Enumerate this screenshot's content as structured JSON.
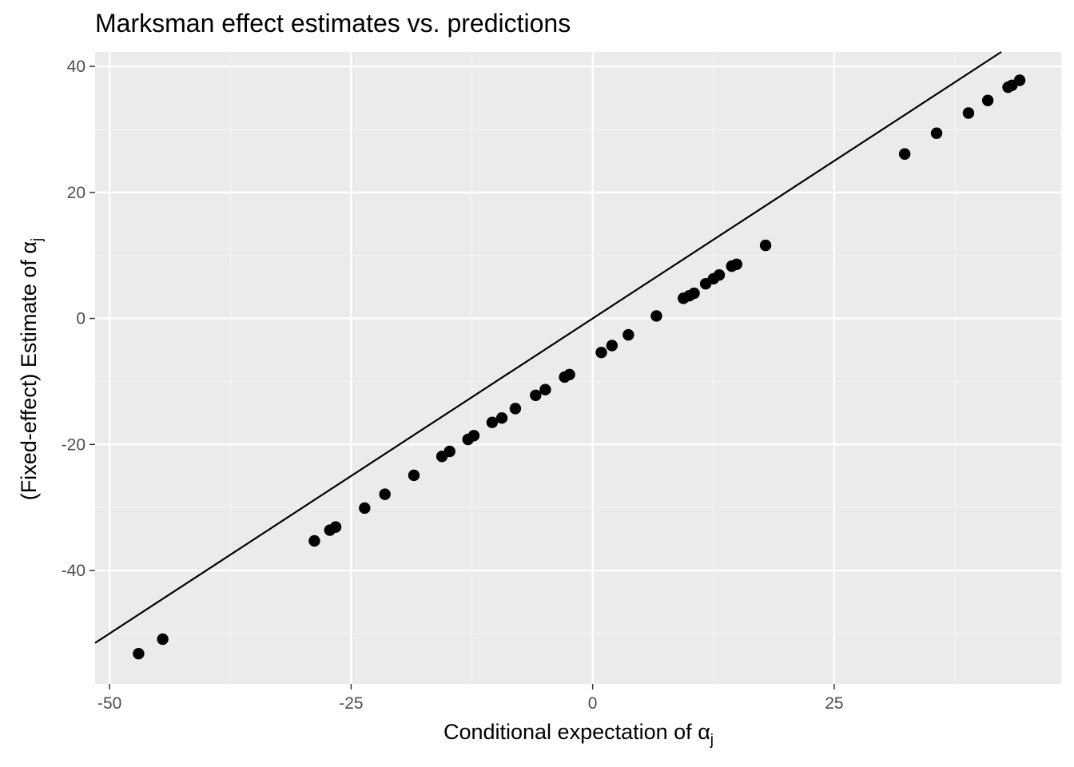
{
  "chart_data": {
    "type": "scatter",
    "title": "Marksman effect estimates vs. predictions",
    "xlabel": "Conditional expectation of",
    "xlabel_symbol": "α",
    "xlabel_subscript": "j",
    "ylabel": "(Fixed-effect) Estimate of",
    "ylabel_symbol": "α",
    "ylabel_subscript": "j",
    "xlim": [
      -51.5,
      48.5
    ],
    "ylim": [
      -58.0,
      42.3
    ],
    "x_ticks": [
      -50,
      -25,
      0,
      25
    ],
    "x_tick_labels": [
      "-50",
      "-25",
      "0",
      "25"
    ],
    "y_ticks": [
      -40,
      -20,
      0,
      20,
      40
    ],
    "y_tick_labels": [
      "-40",
      "-20",
      "0",
      "20",
      "40"
    ],
    "grid": true,
    "reference_line": {
      "slope": 1,
      "intercept": 0
    },
    "points": [
      {
        "x": -47.0,
        "y": -53.2
      },
      {
        "x": -44.5,
        "y": -50.9
      },
      {
        "x": -28.8,
        "y": -35.3
      },
      {
        "x": -27.2,
        "y": -33.6
      },
      {
        "x": -26.6,
        "y": -33.1
      },
      {
        "x": -23.6,
        "y": -30.1
      },
      {
        "x": -21.5,
        "y": -27.9
      },
      {
        "x": -18.5,
        "y": -24.9
      },
      {
        "x": -15.6,
        "y": -21.9
      },
      {
        "x": -14.8,
        "y": -21.1
      },
      {
        "x": -12.9,
        "y": -19.2
      },
      {
        "x": -12.3,
        "y": -18.6
      },
      {
        "x": -10.4,
        "y": -16.5
      },
      {
        "x": -9.4,
        "y": -15.8
      },
      {
        "x": -8.0,
        "y": -14.3
      },
      {
        "x": -5.9,
        "y": -12.2
      },
      {
        "x": -4.9,
        "y": -11.3
      },
      {
        "x": -2.9,
        "y": -9.3
      },
      {
        "x": -2.4,
        "y": -8.9
      },
      {
        "x": 0.9,
        "y": -5.4
      },
      {
        "x": 2.0,
        "y": -4.3
      },
      {
        "x": 3.7,
        "y": -2.6
      },
      {
        "x": 6.6,
        "y": 0.4
      },
      {
        "x": 9.4,
        "y": 3.2
      },
      {
        "x": 10.0,
        "y": 3.6
      },
      {
        "x": 10.5,
        "y": 4.0
      },
      {
        "x": 11.7,
        "y": 5.5
      },
      {
        "x": 12.5,
        "y": 6.3
      },
      {
        "x": 13.1,
        "y": 6.9
      },
      {
        "x": 14.4,
        "y": 8.3
      },
      {
        "x": 14.9,
        "y": 8.6
      },
      {
        "x": 17.9,
        "y": 11.6
      },
      {
        "x": 32.3,
        "y": 26.1
      },
      {
        "x": 35.6,
        "y": 29.4
      },
      {
        "x": 38.9,
        "y": 32.6
      },
      {
        "x": 40.9,
        "y": 34.6
      },
      {
        "x": 43.0,
        "y": 36.7
      },
      {
        "x": 43.4,
        "y": 37.0
      },
      {
        "x": 44.2,
        "y": 37.8
      }
    ],
    "colors": {
      "panel": "#ebebeb",
      "grid_major": "#ffffff",
      "grid_minor": "#f5f5f5",
      "point": "#000000",
      "line": "#000000",
      "tick": "#333333",
      "tick_label": "#4d4d4d"
    }
  }
}
